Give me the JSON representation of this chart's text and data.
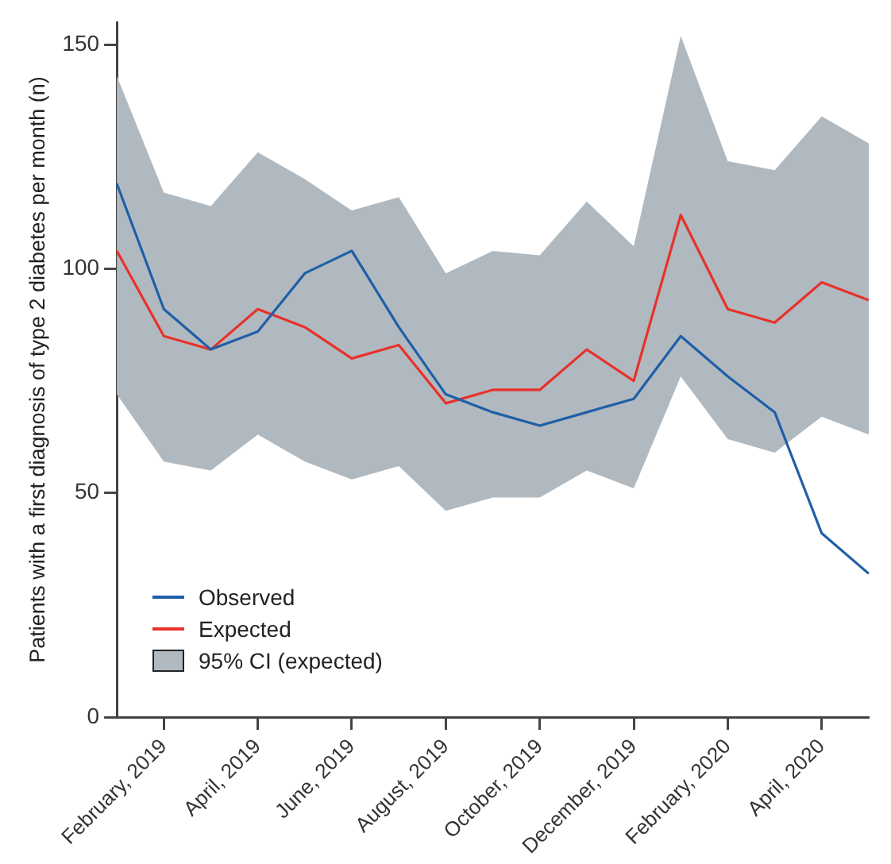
{
  "chart_data": {
    "type": "line",
    "ylabel": "Patients with a first diagnosis of type 2 diabetes per month (n)",
    "categories": [
      null,
      "February, 2019",
      null,
      "April, 2019",
      null,
      "June, 2019",
      null,
      "August, 2019",
      null,
      "October, 2019",
      null,
      "December, 2019",
      null,
      "February, 2020",
      null,
      "April, 2020",
      null
    ],
    "series": [
      {
        "name": "Observed",
        "color": "#1f5fa8",
        "values": [
          119,
          91,
          82,
          86,
          99,
          104,
          87,
          72,
          68,
          65,
          68,
          71,
          85,
          76,
          68,
          41,
          32
        ]
      },
      {
        "name": "Expected",
        "color": "#e8312a",
        "values": [
          104,
          85,
          82,
          91,
          87,
          80,
          83,
          70,
          73,
          73,
          82,
          75,
          112,
          91,
          88,
          97,
          93
        ],
        "lower": [
          72,
          57,
          55,
          63,
          57,
          53,
          56,
          46,
          49,
          49,
          55,
          51,
          76,
          62,
          59,
          67,
          63
        ],
        "upper": [
          143,
          117,
          114,
          126,
          120,
          113,
          116,
          99,
          104,
          103,
          115,
          105,
          152,
          124,
          122,
          134,
          128
        ]
      }
    ],
    "annotations": [
      "95% CI (expected)"
    ],
    "ylim": [
      0,
      155
    ],
    "yticks": [
      0,
      50,
      100,
      150
    ],
    "legend": "bottom left"
  }
}
